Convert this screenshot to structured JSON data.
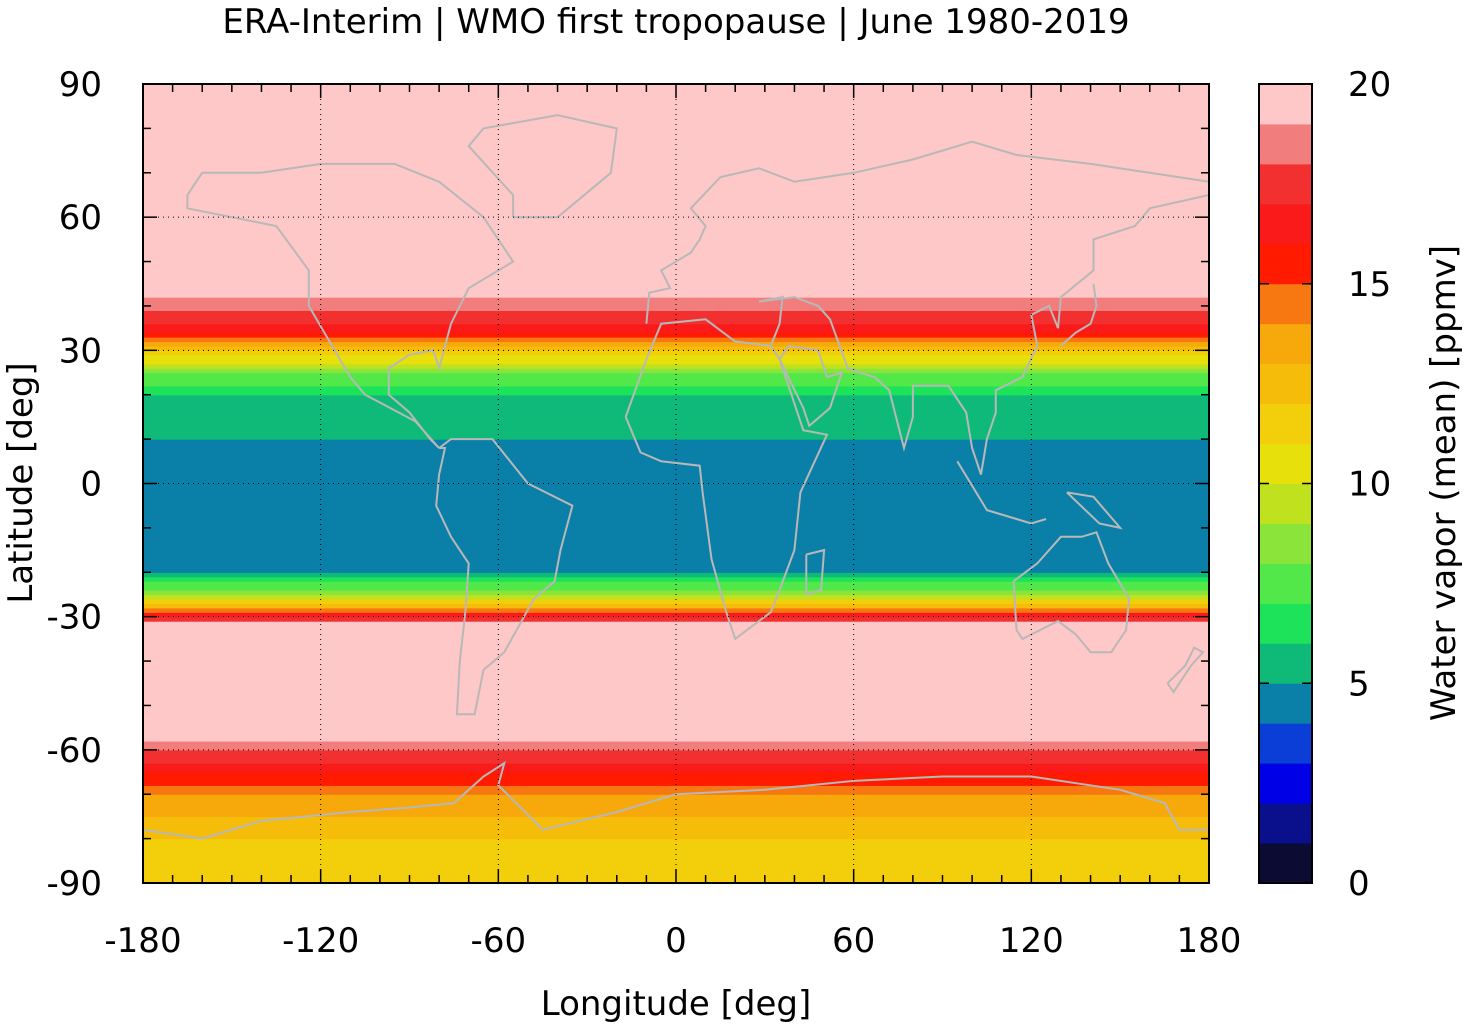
{
  "chart_data": {
    "type": "heatmap",
    "title": "ERA-Interim | WMO first tropopause | June 1980-2019",
    "xlabel": "Longitude [deg]",
    "ylabel": "Latitude [deg]",
    "xlim": [
      -180,
      180
    ],
    "ylim": [
      -90,
      90
    ],
    "xticks": [
      -180,
      -120,
      -60,
      0,
      60,
      120,
      180
    ],
    "yticks": [
      90,
      60,
      30,
      0,
      -30,
      -60,
      -90
    ],
    "x_tick_labels": [
      "-180",
      "-120",
      "-60",
      "0",
      "60",
      "120",
      "180"
    ],
    "y_tick_labels": [
      "90",
      "60",
      "30",
      "0",
      "-30",
      "-60",
      "-90"
    ],
    "grid": true,
    "colorbar": {
      "label": "Water vapor (mean) [ppmv]",
      "ticks": [
        0,
        5,
        10,
        15,
        20
      ],
      "tick_labels": [
        "0",
        "5",
        "10",
        "15",
        "20"
      ],
      "levels": [
        0,
        1,
        2,
        3,
        4,
        5,
        6,
        7,
        8,
        9,
        10,
        11,
        12,
        13,
        14,
        15,
        16,
        17,
        18,
        19,
        20
      ],
      "colors": [
        "#0b0b33",
        "#0a0f8c",
        "#0000e6",
        "#0a3ed6",
        "#0a7fa8",
        "#0fba79",
        "#1de35a",
        "#52e84a",
        "#8be43a",
        "#c0e21e",
        "#e8e00a",
        "#f2cf0a",
        "#f5bd0a",
        "#f7a80a",
        "#f77810",
        "#ff1a00",
        "#fb1a1a",
        "#f23030",
        "#f27d7d",
        "#ffc8c8"
      ]
    },
    "zonal_profile": {
      "description_latitudes": [
        -90,
        -80,
        -70,
        -65,
        -60,
        -55,
        -40,
        -32,
        -30,
        -28,
        -25,
        -20,
        -10,
        0,
        10,
        20,
        25,
        30,
        33,
        36,
        45,
        60,
        90
      ],
      "values_ppmv": [
        11,
        12,
        14,
        16,
        18,
        20,
        20,
        20,
        17,
        13,
        9,
        5,
        4.5,
        4.5,
        5,
        6,
        8,
        12,
        15,
        17,
        20,
        20,
        20
      ]
    }
  }
}
